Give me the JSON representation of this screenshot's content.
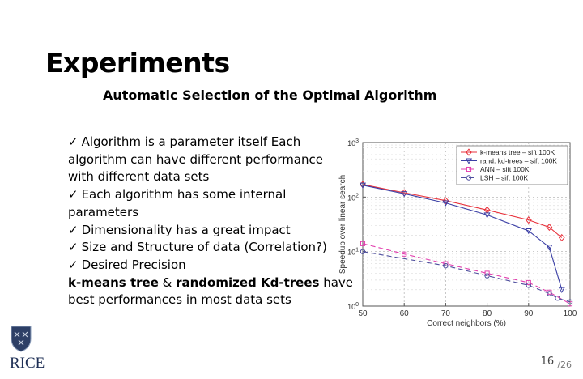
{
  "title": "Experiments",
  "subtitle": "Automatic Selection of the Optimal Algorithm",
  "bullets": {
    "check": "✓",
    "lines": [
      "Algorithm is a parameter itself Each",
      "algorithm can have different performance",
      "with different data sets",
      "Each algorithm has some internal",
      "parameters",
      "Dimensionality has a great impact",
      "Size and Structure of data (Correlation?)",
      "Desired Precision"
    ],
    "summary": {
      "bold1": "k-means tree",
      "amp": " & ",
      "bold2": "randomized Kd-trees",
      "rest1": " have",
      "rest2": "best performances in most data sets"
    }
  },
  "logo": {
    "text": "RICE"
  },
  "page": {
    "current": "16",
    "total": "/26"
  },
  "chart_data": {
    "type": "line",
    "xlabel": "Correct neighbors (%)",
    "ylabel": "Speedup over linear search",
    "xlim": [
      50,
      100
    ],
    "ylim": [
      1,
      1000
    ],
    "yscale": "log",
    "xticks": [
      50,
      60,
      70,
      80,
      90,
      100
    ],
    "yticks": [
      1,
      10,
      100,
      1000
    ],
    "ytick_labels": [
      "10^0",
      "10^1",
      "10^2",
      "10^3"
    ],
    "grid": true,
    "legend_position": "top-right",
    "series": [
      {
        "name": "k-means tree – sift 100K",
        "color": "#e8323c",
        "marker": "diamond",
        "dash": "",
        "x": [
          50,
          60,
          70,
          80,
          90,
          95,
          98
        ],
        "y": [
          170,
          120,
          86,
          58,
          38,
          28,
          18
        ]
      },
      {
        "name": "rand. kd-trees – sift 100K",
        "color": "#3b3fa5",
        "marker": "triangle",
        "dash": "",
        "x": [
          50,
          60,
          70,
          80,
          90,
          95,
          98
        ],
        "y": [
          165,
          115,
          78,
          47,
          24,
          12,
          2
        ]
      },
      {
        "name": "ANN – sift 100K",
        "color": "#e23fae",
        "marker": "square",
        "dash": "6,4",
        "x": [
          50,
          60,
          70,
          80,
          90,
          95,
          100
        ],
        "y": [
          14,
          9,
          6,
          4,
          2.7,
          1.8,
          1.1
        ]
      },
      {
        "name": "LSH – sift 100K",
        "color": "#4f4f9e",
        "marker": "circle",
        "dash": "6,4",
        "x": [
          50,
          70,
          80,
          90,
          95,
          97,
          100
        ],
        "y": [
          10,
          5.5,
          3.6,
          2.4,
          1.7,
          1.4,
          1.2
        ]
      }
    ]
  }
}
